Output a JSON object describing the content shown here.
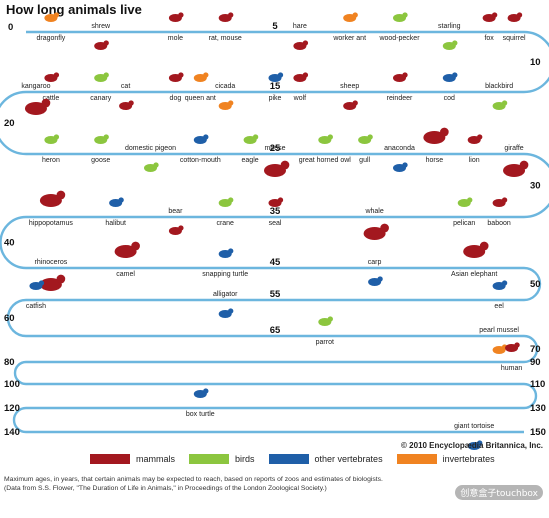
{
  "title": "How long animals live",
  "colors": {
    "mammals": "#a3181f",
    "birds": "#8cc63f",
    "other_vertebrates": "#1f5fa8",
    "invertebrates": "#f08321",
    "track": "#6cb6de"
  },
  "rows": [
    {
      "start": 0,
      "end": 10,
      "start_label": "0",
      "end_label": "10"
    },
    {
      "start": 10,
      "end": 20,
      "start_label": "",
      "end_label": "20"
    },
    {
      "start": 20,
      "end": 30,
      "start_label": "",
      "end_label": "30"
    },
    {
      "start": 30,
      "end": 40,
      "start_label": "",
      "end_label": "40"
    },
    {
      "start": 40,
      "end": 50,
      "start_label": "",
      "end_label": "50"
    },
    {
      "start": 50,
      "end": 60,
      "start_label": "",
      "end_label": "60"
    },
    {
      "start": 60,
      "end": 70,
      "start_label": "",
      "end_label": "70"
    },
    {
      "start": 70,
      "end": 90,
      "start_label": "",
      "end_label": "80"
    },
    {
      "start": 90,
      "end": 110,
      "start_label": "",
      "end_label": "100"
    },
    {
      "start": 110,
      "end": 130,
      "start_label": "",
      "end_label": "120"
    },
    {
      "start": 130,
      "end": 150,
      "start_label": "",
      "end_label": "140"
    }
  ],
  "row_numbers": {
    "mid": [
      {
        "row": 0,
        "value": 5,
        "label": "5"
      },
      {
        "row": 1,
        "value": 15,
        "label": "15"
      },
      {
        "row": 2,
        "value": 25,
        "label": "25"
      },
      {
        "row": 3,
        "value": 35,
        "label": "35"
      },
      {
        "row": 4,
        "value": 45,
        "label": "45"
      },
      {
        "row": 5,
        "value": 55,
        "label": "55"
      },
      {
        "row": 6,
        "value": 65,
        "label": "65"
      }
    ],
    "right_extra": [
      {
        "row": 7,
        "label": "90"
      },
      {
        "row": 8,
        "label": "110"
      },
      {
        "row": 9,
        "label": "130"
      },
      {
        "row": 10,
        "label": "150"
      }
    ]
  },
  "animals": [
    {
      "name": "dragonfly",
      "years": 0.5,
      "group": "invertebrates",
      "icon": "dragonfly-icon"
    },
    {
      "name": "shrew",
      "years": 1.5,
      "group": "mammals",
      "icon": "shrew-icon"
    },
    {
      "name": "mole",
      "years": 3,
      "group": "mammals",
      "icon": "mole-icon"
    },
    {
      "name": "rat, mouse",
      "years": 4,
      "group": "mammals",
      "icon": "rat-icon"
    },
    {
      "name": "hare",
      "years": 5.5,
      "group": "mammals",
      "icon": "hare-icon"
    },
    {
      "name": "worker ant",
      "years": 6.5,
      "group": "invertebrates",
      "icon": "ant-icon"
    },
    {
      "name": "wood-pecker",
      "years": 7.5,
      "group": "birds",
      "icon": "woodpecker-icon"
    },
    {
      "name": "starling",
      "years": 8.5,
      "group": "birds",
      "icon": "starling-icon"
    },
    {
      "name": "fox",
      "years": 9.3,
      "group": "mammals",
      "icon": "fox-icon"
    },
    {
      "name": "squirrel",
      "years": 10,
      "group": "mammals",
      "icon": "squirrel-icon"
    },
    {
      "name": "blackbird",
      "years": 10.5,
      "group": "birds",
      "icon": "blackbird-icon"
    },
    {
      "name": "cod",
      "years": 11.5,
      "group": "other_vertebrates",
      "icon": "cod-icon"
    },
    {
      "name": "reindeer",
      "years": 12.5,
      "group": "mammals",
      "icon": "reindeer-icon"
    },
    {
      "name": "sheep",
      "years": 13.5,
      "group": "mammals",
      "icon": "sheep-icon"
    },
    {
      "name": "wolf",
      "years": 14.5,
      "group": "mammals",
      "icon": "wolf-icon"
    },
    {
      "name": "pike",
      "years": 15,
      "group": "other_vertebrates",
      "icon": "pike-icon"
    },
    {
      "name": "cicada",
      "years": 16,
      "group": "invertebrates",
      "icon": "cicada-icon"
    },
    {
      "name": "queen ant",
      "years": 16.5,
      "group": "invertebrates",
      "icon": "queen-ant-icon"
    },
    {
      "name": "dog",
      "years": 17,
      "group": "mammals",
      "icon": "dog-icon"
    },
    {
      "name": "cat",
      "years": 18,
      "group": "mammals",
      "icon": "cat-icon"
    },
    {
      "name": "canary",
      "years": 18.5,
      "group": "birds",
      "icon": "canary-icon"
    },
    {
      "name": "cattle",
      "years": 19.5,
      "group": "mammals",
      "icon": "cattle-icon"
    },
    {
      "name": "kangaroo",
      "years": 20,
      "group": "mammals",
      "icon": "kangaroo-icon"
    },
    {
      "name": "heron",
      "years": 20.5,
      "group": "birds",
      "icon": "heron-icon"
    },
    {
      "name": "goose",
      "years": 21.5,
      "group": "birds",
      "icon": "goose-icon"
    },
    {
      "name": "domestic pigeon",
      "years": 22.5,
      "group": "birds",
      "icon": "pigeon-icon"
    },
    {
      "name": "cotton-mouth",
      "years": 23.5,
      "group": "other_vertebrates",
      "icon": "cottonmouth-icon"
    },
    {
      "name": "eagle",
      "years": 24.5,
      "group": "birds",
      "icon": "eagle-icon"
    },
    {
      "name": "moose",
      "years": 25,
      "group": "mammals",
      "icon": "moose-icon"
    },
    {
      "name": "great horned owl",
      "years": 26,
      "group": "birds",
      "icon": "owl-icon"
    },
    {
      "name": "gull",
      "years": 26.8,
      "group": "birds",
      "icon": "gull-icon"
    },
    {
      "name": "anaconda",
      "years": 27.5,
      "group": "other_vertebrates",
      "icon": "anaconda-icon"
    },
    {
      "name": "horse",
      "years": 28.2,
      "group": "mammals",
      "icon": "horse-icon"
    },
    {
      "name": "lion",
      "years": 29,
      "group": "mammals",
      "icon": "lion-icon"
    },
    {
      "name": "giraffe",
      "years": 29.8,
      "group": "mammals",
      "icon": "giraffe-icon"
    },
    {
      "name": "baboon",
      "years": 30.5,
      "group": "mammals",
      "icon": "baboon-icon"
    },
    {
      "name": "pelican",
      "years": 31.2,
      "group": "birds",
      "icon": "pelican-icon"
    },
    {
      "name": "whale",
      "years": 33,
      "group": "mammals",
      "icon": "whale-icon"
    },
    {
      "name": "seal",
      "years": 35,
      "group": "mammals",
      "icon": "seal-icon"
    },
    {
      "name": "crane",
      "years": 36,
      "group": "birds",
      "icon": "crane-icon"
    },
    {
      "name": "bear",
      "years": 37,
      "group": "mammals",
      "icon": "bear-icon"
    },
    {
      "name": "halibut",
      "years": 38.2,
      "group": "other_vertebrates",
      "icon": "halibut-icon"
    },
    {
      "name": "hippopotamus",
      "years": 39.5,
      "group": "mammals",
      "icon": "hippo-icon"
    },
    {
      "name": "rhinoceros",
      "years": 40.5,
      "group": "mammals",
      "icon": "rhino-icon"
    },
    {
      "name": "camel",
      "years": 42,
      "group": "mammals",
      "icon": "camel-icon"
    },
    {
      "name": "snapping turtle",
      "years": 44,
      "group": "other_vertebrates",
      "icon": "snapping-turtle-icon"
    },
    {
      "name": "carp",
      "years": 47,
      "group": "other_vertebrates",
      "icon": "carp-icon"
    },
    {
      "name": "Asian elephant",
      "years": 49,
      "group": "mammals",
      "icon": "elephant-icon"
    },
    {
      "name": "eel",
      "years": 50.5,
      "group": "other_vertebrates",
      "icon": "eel-icon"
    },
    {
      "name": "alligator",
      "years": 56,
      "group": "other_vertebrates",
      "icon": "alligator-icon"
    },
    {
      "name": "catfish",
      "years": 60,
      "group": "other_vertebrates",
      "icon": "catfish-icon"
    },
    {
      "name": "parrot",
      "years": 66,
      "group": "birds",
      "icon": "parrot-icon"
    },
    {
      "name": "pearl mussel",
      "years": 69.5,
      "group": "invertebrates",
      "icon": "mussel-icon"
    },
    {
      "name": "human",
      "years": 70.5,
      "group": "mammals",
      "icon": "human-icon"
    },
    {
      "name": "box turtle",
      "years": 123,
      "group": "other_vertebrates",
      "icon": "box-turtle-icon"
    },
    {
      "name": "giant tortoise",
      "years": 148,
      "group": "other_vertebrates",
      "icon": "tortoise-icon"
    }
  ],
  "legend": [
    {
      "key": "mammals",
      "label": "mammals"
    },
    {
      "key": "birds",
      "label": "birds"
    },
    {
      "key": "other_vertebrates",
      "label": "other vertebrates"
    },
    {
      "key": "invertebrates",
      "label": "invertebrates"
    }
  ],
  "copyright": "© 2010 Encyclopædia Britannica, Inc.",
  "notes": {
    "line1": "Maximum ages, in years, that certain animals may be expected to reach, based on reports of zoos and estimates of biologists.",
    "line2": "(Data from S.S. Flower, \"The Duration of Life in Animals,\" in Proceedings of the London Zoological Society.)"
  },
  "watermark": "创意盒子touchbox"
}
